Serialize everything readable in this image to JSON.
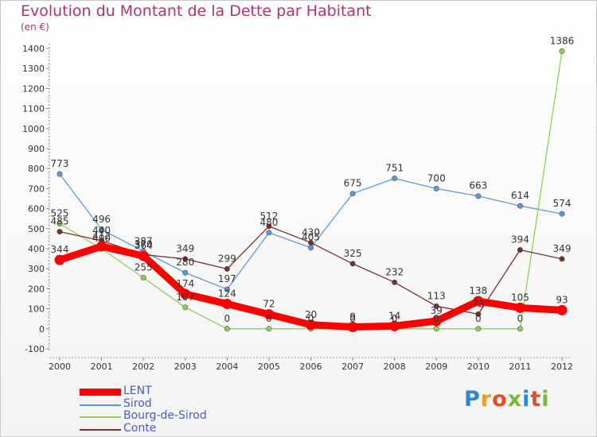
{
  "header": {
    "title": "Evolution du Montant de la Dette par Habitant",
    "subtitle": "(en €)"
  },
  "logo": {
    "text": "Proxiti",
    "letter_colors": [
      "#2e86d3",
      "#e8a020",
      "#e84a2a",
      "#7ab835",
      "#2e86d3",
      "#e84a2a",
      "#7ab835"
    ]
  },
  "chart_data": {
    "type": "line",
    "x": [
      "2000",
      "2001",
      "2002",
      "2003",
      "2004",
      "2005",
      "2006",
      "2007",
      "2008",
      "2009",
      "2010",
      "2011",
      "2012"
    ],
    "ylim": [
      -100,
      1400
    ],
    "yticks": [
      -100,
      0,
      100,
      200,
      300,
      400,
      500,
      600,
      700,
      800,
      900,
      1000,
      1100,
      1200,
      1300,
      1400
    ],
    "grid": false,
    "legend_position": "bottom-left",
    "series": [
      {
        "name": "LENT",
        "color": "#ff0000",
        "values": [
          344,
          412,
          364,
          174,
          124,
          72,
          20,
          9,
          14,
          39,
          138,
          105,
          93
        ],
        "labels": [
          "344",
          "412",
          "364",
          "174",
          "124",
          "72",
          "20",
          "9",
          "14",
          "39",
          "138",
          "105",
          "93"
        ]
      },
      {
        "name": "Sirod",
        "color": "#5b9bd5",
        "values": [
          773,
          496,
          387,
          280,
          197,
          480,
          405,
          675,
          751,
          700,
          663,
          614,
          574
        ],
        "labels": [
          "773",
          "496",
          "387",
          "280",
          "197",
          "480",
          "405",
          "675",
          "751",
          "700",
          "663",
          "614",
          "574"
        ]
      },
      {
        "name": "Bourg-de-Sirod",
        "color": "#8fd14f",
        "values": [
          525,
          400,
          255,
          107,
          0,
          0,
          0,
          0,
          0,
          0,
          0,
          0,
          1386
        ],
        "labels": [
          "525",
          "400",
          "255",
          "107",
          "0",
          "0",
          "0",
          "0",
          "0",
          "0",
          "0",
          "0",
          "1386"
        ]
      },
      {
        "name": "Conte",
        "color": "#7a2e2e",
        "values": [
          485,
          440,
          370,
          349,
          299,
          512,
          430,
          325,
          232,
          113,
          73,
          394,
          349
        ],
        "labels": [
          "485",
          "440",
          "370",
          "349",
          "299",
          "512",
          "430",
          "325",
          "232",
          "113",
          "73",
          "394",
          "349"
        ]
      }
    ]
  }
}
